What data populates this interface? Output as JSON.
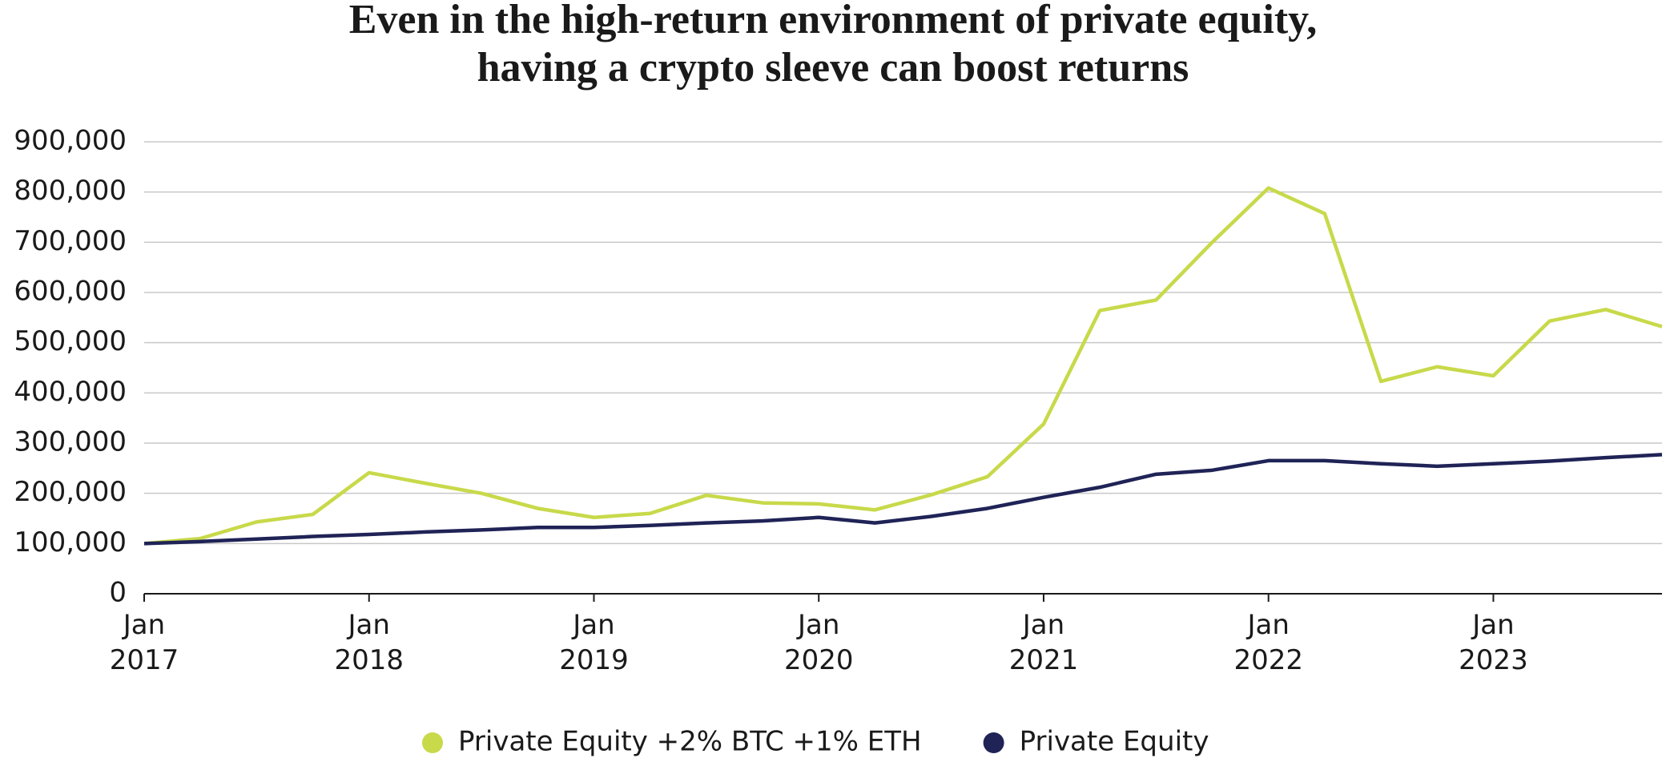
{
  "chart_data": {
    "type": "line",
    "title": [
      "Even in the high-return environment of private equity,",
      "having a crypto sleeve can boost returns"
    ],
    "x": [
      2017,
      2017.25,
      2017.5,
      2017.75,
      2018,
      2018.25,
      2018.5,
      2018.75,
      2019,
      2019.25,
      2019.5,
      2019.75,
      2020,
      2020.25,
      2020.5,
      2020.75,
      2021,
      2021.25,
      2021.5,
      2021.75,
      2022,
      2022.25,
      2022.5,
      2022.75,
      2023,
      2023.25,
      2023.5,
      2023.75
    ],
    "series": [
      {
        "name": "Private Equity +2% BTC +1% ETH",
        "color": "#c8d94a",
        "values": [
          100000,
          110000,
          143000,
          158000,
          241000,
          220000,
          200000,
          170000,
          152000,
          160000,
          196000,
          181000,
          179000,
          167000,
          197000,
          233000,
          338000,
          564000,
          585000,
          700000,
          808000,
          757000,
          423000,
          452000,
          434000,
          543000,
          566000,
          532000
        ]
      },
      {
        "name": "Private Equity",
        "color": "#1f2356",
        "values": [
          100000,
          104000,
          109000,
          114000,
          118000,
          123000,
          127000,
          132000,
          132000,
          136000,
          141000,
          145000,
          152000,
          141000,
          154000,
          170000,
          192000,
          212000,
          238000,
          246000,
          265000,
          265000,
          259000,
          254000,
          259000,
          264000,
          271000,
          277000
        ]
      }
    ],
    "xlim": [
      2017,
      2023.75
    ],
    "xticks": [
      {
        "value": 2017,
        "label": "Jan 2017"
      },
      {
        "value": 2018,
        "label": "Jan 2018"
      },
      {
        "value": 2019,
        "label": "Jan 2019"
      },
      {
        "value": 2020,
        "label": "Jan 2020"
      },
      {
        "value": 2021,
        "label": "Jan 2021"
      },
      {
        "value": 2022,
        "label": "Jan 2022"
      },
      {
        "value": 2023,
        "label": "Jan 2023"
      }
    ],
    "ylim": [
      0,
      900000
    ],
    "yticks": [
      0,
      {
        "value": 100000,
        "label": "100,000"
      },
      {
        "value": 200000,
        "label": "200,000"
      },
      {
        "value": 300000,
        "label": "300,000"
      },
      {
        "value": 400000,
        "label": "400,000"
      },
      {
        "value": 500000,
        "label": "500,000"
      },
      {
        "value": 600000,
        "label": "600,000"
      },
      {
        "value": 700000,
        "label": "700,000"
      },
      {
        "value": 800000,
        "label": "800,000"
      },
      {
        "value": 900000,
        "label": "900,000"
      }
    ],
    "grid": true
  }
}
